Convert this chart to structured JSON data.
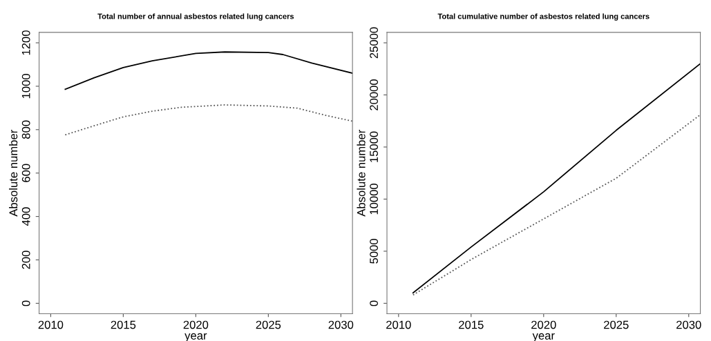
{
  "chart_data": [
    {
      "type": "line",
      "title": "Total number of annual asbestos related lung cancers",
      "xlabel": "year",
      "ylabel": "Absolute number",
      "xlim": [
        2009.2,
        2030.8
      ],
      "ylim": [
        -48,
        1248
      ],
      "xticks": [
        2010,
        2015,
        2020,
        2025,
        2030
      ],
      "yticks": [
        0,
        200,
        400,
        600,
        800,
        1000,
        1200
      ],
      "grid": false,
      "legend": false,
      "marker": "none",
      "series": [
        {
          "color": "#000000",
          "line_style": "solid",
          "x": [
            2011,
            2013,
            2015,
            2017,
            2020,
            2022,
            2025,
            2026,
            2028,
            2030.8
          ],
          "values": [
            986,
            1039,
            1086,
            1117,
            1151,
            1158,
            1155,
            1146,
            1107,
            1060
          ]
        },
        {
          "color": "#555555",
          "line_style": "dotted",
          "x": [
            2011,
            2013,
            2015,
            2017,
            2019,
            2022,
            2025,
            2027,
            2029,
            2030.8
          ],
          "values": [
            776,
            818,
            859,
            885,
            903,
            914,
            909,
            899,
            865,
            839
          ]
        }
      ]
    },
    {
      "type": "line",
      "title": "Total cumulative number of asbestos related lung cancers",
      "xlabel": "year",
      "ylabel": "Absolute number",
      "xlim": [
        2009.2,
        2030.8
      ],
      "ylim": [
        -1000,
        26000
      ],
      "xticks": [
        2010,
        2015,
        2020,
        2025,
        2030
      ],
      "yticks": [
        0,
        5000,
        10000,
        15000,
        20000,
        25000
      ],
      "grid": false,
      "legend": false,
      "marker": "none",
      "series": [
        {
          "color": "#000000",
          "line_style": "solid",
          "x": [
            2011,
            2015,
            2020,
            2025,
            2030.8
          ],
          "values": [
            1000,
            5400,
            10700,
            16600,
            23000
          ]
        },
        {
          "color": "#555555",
          "line_style": "dotted",
          "x": [
            2011,
            2015,
            2020,
            2025,
            2030.8
          ],
          "values": [
            800,
            4200,
            8100,
            12000,
            18100
          ]
        }
      ]
    }
  ]
}
